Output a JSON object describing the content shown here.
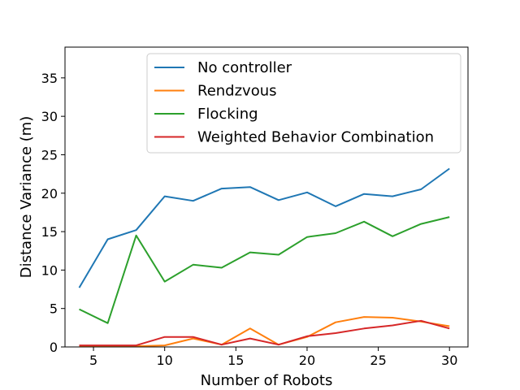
{
  "chart_data": {
    "type": "line",
    "xlabel": "Number of Robots",
    "ylabel": "Distance Variance (m)",
    "xlim": [
      3,
      31.3
    ],
    "ylim": [
      0,
      39
    ],
    "xticks": [
      5,
      10,
      15,
      20,
      25,
      30
    ],
    "yticks": [
      0,
      5,
      10,
      15,
      20,
      25,
      30,
      35
    ],
    "grid": false,
    "legend_position": "top-right",
    "x": [
      4,
      6,
      8,
      10,
      12,
      14,
      16,
      18,
      20,
      22,
      24,
      26,
      28,
      30
    ],
    "series": [
      {
        "name": "No controller",
        "color": "#1f77b4",
        "values": [
          7.7,
          14.0,
          15.2,
          19.6,
          19.0,
          20.6,
          20.8,
          19.1,
          20.1,
          18.3,
          19.9,
          19.6,
          20.5,
          23.2
        ]
      },
      {
        "name": "Rendzvous",
        "color": "#ff7f0e",
        "values": [
          0.1,
          0.1,
          0.1,
          0.2,
          1.1,
          0.3,
          2.4,
          0.3,
          1.3,
          3.2,
          3.9,
          3.8,
          3.3,
          2.7
        ]
      },
      {
        "name": "Flocking",
        "color": "#2ca02c",
        "values": [
          4.9,
          3.1,
          14.5,
          8.5,
          10.7,
          10.3,
          12.3,
          12.0,
          14.3,
          14.8,
          16.3,
          14.4,
          16.0,
          16.9
        ]
      },
      {
        "name": "Weighted Behavior Combination",
        "color": "#d62728",
        "values": [
          0.2,
          0.2,
          0.2,
          1.3,
          1.3,
          0.3,
          1.1,
          0.3,
          1.4,
          1.8,
          2.4,
          2.8,
          3.4,
          2.4
        ]
      }
    ]
  }
}
